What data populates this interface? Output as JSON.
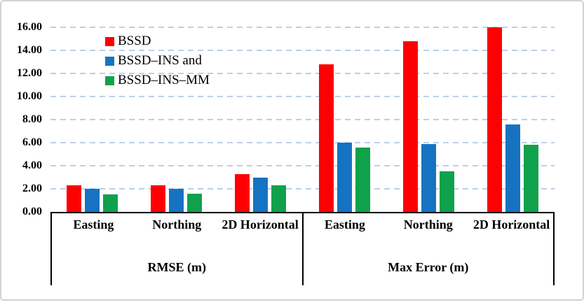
{
  "chart_data": {
    "type": "bar",
    "title": "",
    "xlabel": "",
    "ylabel": "",
    "ylim": [
      0,
      16
    ],
    "ytick_step": 2,
    "yticks": [
      {
        "value": 0,
        "label": "0.00"
      },
      {
        "value": 2,
        "label": "2.00"
      },
      {
        "value": 4,
        "label": "4.00"
      },
      {
        "value": 6,
        "label": "6.00"
      },
      {
        "value": 8,
        "label": "8.00"
      },
      {
        "value": 10,
        "label": "10.00"
      },
      {
        "value": 12,
        "label": "12.00"
      },
      {
        "value": 14,
        "label": "14.00"
      },
      {
        "value": 16,
        "label": "16.00"
      }
    ],
    "grid": {
      "orientation": "horizontal",
      "style": "dashed",
      "color": "#bdd0e6"
    },
    "axis_color": "#000000",
    "legend_position": "inside-top-left",
    "groups": [
      {
        "label": "RMSE (m)",
        "categories": [
          "Easting",
          "Northing",
          "2D Horizontal"
        ]
      },
      {
        "label": "Max Error (m)",
        "categories": [
          "Easting",
          "Northing",
          "2D Horizontal"
        ]
      }
    ],
    "series": [
      {
        "name": "BSSD",
        "color": "#fd0002",
        "values_by_group": [
          [
            2.3,
            2.3,
            3.3
          ],
          [
            12.8,
            14.8,
            16.0
          ]
        ]
      },
      {
        "name": "BSSD–INS and",
        "color": "#1673c2",
        "values_by_group": [
          [
            2.0,
            2.0,
            3.0
          ],
          [
            6.0,
            5.9,
            7.6
          ]
        ]
      },
      {
        "name": "BSSD–INS–MM",
        "color": "#10a14c",
        "values_by_group": [
          [
            1.5,
            1.6,
            2.3
          ],
          [
            5.6,
            3.5,
            5.8
          ]
        ]
      }
    ]
  }
}
